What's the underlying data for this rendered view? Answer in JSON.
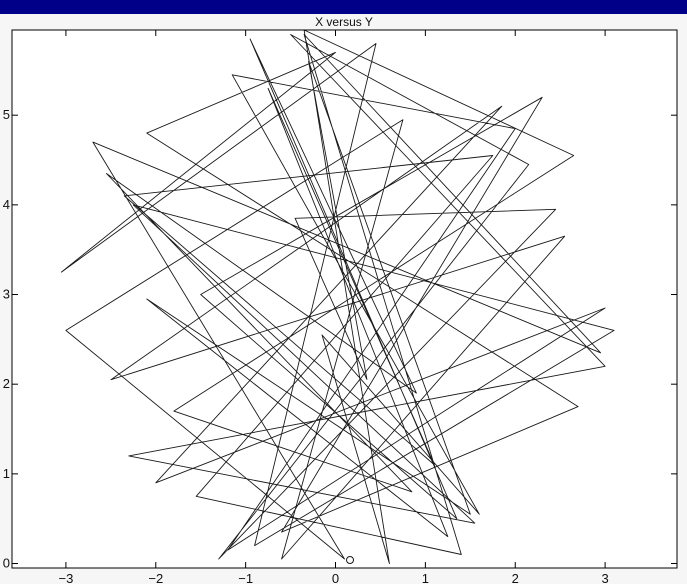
{
  "colors": {
    "frame": "#000088",
    "panel": "#f6f6f6",
    "plot_background": "#ffffff",
    "line": "#1a1a1a",
    "axis": "#000000"
  },
  "chart_data": {
    "type": "line",
    "title": "X versus Y",
    "xlabel": "",
    "ylabel": "",
    "xlim": [
      -3.6,
      3.8
    ],
    "ylim": [
      -0.05,
      5.95
    ],
    "xticks": [
      -3,
      -2,
      -1,
      0,
      1,
      2,
      3
    ],
    "yticks": [
      0,
      1,
      2,
      3,
      4,
      5
    ],
    "xtick_labels": [
      "−3",
      "−2",
      "−1",
      "0",
      "1",
      "2",
      "3"
    ],
    "ytick_labels": [
      "0",
      "1",
      "2",
      "3",
      "4",
      "5"
    ],
    "grid": false,
    "legend": "none",
    "series": [
      {
        "style": "thin dark line",
        "x": [
          0.35,
          -0.45,
          2.45,
          -1.3,
          2.15,
          -0.5,
          3.0,
          -2.3,
          1.55,
          -2.25,
          3.1,
          -0.9,
          0.45,
          -3.05,
          0.0,
          -2.1,
          2.7,
          -0.6,
          2.3,
          -1.5,
          1.35,
          -0.95,
          0.9,
          -2.55,
          0.85,
          -1.8,
          2.65,
          -0.35,
          0.6,
          -0.15,
          1.6,
          -1.15,
          2.0,
          -1.2,
          3.0,
          -2.0,
          1.85,
          -2.5,
          2.55,
          -0.6,
          0.75,
          -3.0,
          0.1,
          -2.7,
          2.95,
          -0.35,
          1.4,
          -1.55,
          1.75,
          -2.35,
          1.1,
          -0.75,
          1.25,
          -2.1,
          1.5,
          -0.3,
          0.35
        ],
        "y": [
          2.05,
          3.85,
          3.95,
          0.05,
          4.45,
          5.9,
          2.2,
          1.2,
          0.45,
          4.0,
          2.6,
          0.2,
          5.8,
          3.25,
          5.7,
          4.8,
          1.75,
          0.35,
          5.2,
          3.0,
          0.5,
          5.85,
          1.9,
          4.35,
          0.8,
          1.7,
          4.55,
          5.95,
          0.0,
          2.55,
          0.55,
          5.45,
          4.85,
          0.15,
          2.85,
          0.9,
          5.1,
          2.05,
          3.65,
          0.05,
          4.95,
          2.6,
          0.05,
          4.7,
          2.35,
          5.9,
          0.1,
          0.75,
          4.55,
          4.1,
          1.1,
          5.3,
          0.3,
          2.95,
          0.55,
          5.6,
          2.05
        ]
      }
    ]
  }
}
